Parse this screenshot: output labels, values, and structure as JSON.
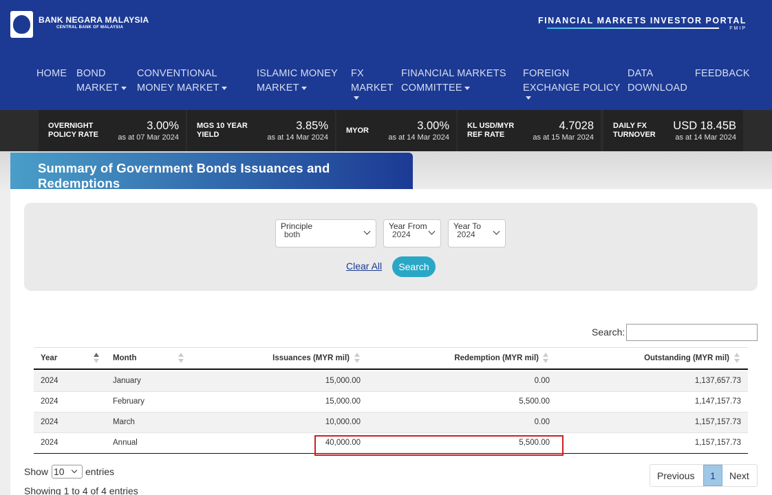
{
  "header": {
    "bank_name": "BANK NEGARA MALAYSIA",
    "bank_sub": "CENTRAL BANK OF MALAYSIA",
    "portal_title": "FINANCIAL MARKETS INVESTOR PORTAL",
    "portal_sub": "FMIP",
    "brand_color": "#1c3a94"
  },
  "nav": [
    {
      "line1": "HOME",
      "line2": ""
    },
    {
      "line1": "BOND",
      "line2": "MARKET"
    },
    {
      "line1": "CONVENTIONAL",
      "line2": "MONEY MARKET"
    },
    {
      "line1": "ISLAMIC MONEY",
      "line2": "MARKET"
    },
    {
      "line1": "FX",
      "line2": "MARKET"
    },
    {
      "line1": "FINANCIAL MARKETS",
      "line2": "COMMITTEE"
    },
    {
      "line1": "FOREIGN",
      "line2": "EXCHANGE POLICY"
    },
    {
      "line1": "DATA",
      "line2": "DOWNLOAD"
    },
    {
      "line1": "FEEDBACK",
      "line2": ""
    }
  ],
  "ticker": [
    {
      "label1": "OVERNIGHT",
      "label2": "POLICY RATE",
      "value": "3.00%",
      "date": "as at 07 Mar 2024"
    },
    {
      "label1": "MGS 10 YEAR",
      "label2": "YIELD",
      "value": "3.85%",
      "date": "as at 14 Mar 2024"
    },
    {
      "label1": "MYOR",
      "label2": "",
      "value": "3.00%",
      "date": "as at 14 Mar 2024"
    },
    {
      "label1": "KL USD/MYR",
      "label2": "REF RATE",
      "value": "4.7028",
      "date": "as at 15 Mar 2024"
    },
    {
      "label1": "DAILY FX",
      "label2": "TURNOVER",
      "value": "USD 18.45B",
      "date": "as at 14 Mar 2024"
    }
  ],
  "page_title": "Summary of Government Bonds Issuances and Redemptions",
  "filters": {
    "principle_label": "Principle",
    "principle_value": "both",
    "year_from_label": "Year From",
    "year_from_value": "2024",
    "year_to_label": "Year To",
    "year_to_value": "2024",
    "clear_label": "Clear All",
    "search_label": "Search"
  },
  "table": {
    "search_label": "Search:",
    "columns": [
      "Year",
      "Month",
      "Issuances (MYR mil)",
      "Redemption (MYR mil)",
      "Outstanding (MYR mil)"
    ],
    "rows": [
      [
        "2024",
        "January",
        "15,000.00",
        "0.00",
        "1,137,657.73"
      ],
      [
        "2024",
        "February",
        "15,000.00",
        "5,500.00",
        "1,147,157.73"
      ],
      [
        "2024",
        "March",
        "10,000.00",
        "0.00",
        "1,157,157.73"
      ],
      [
        "2024",
        "Annual",
        "40,000.00",
        "5,500.00",
        "1,157,157.73"
      ]
    ]
  },
  "footer": {
    "show_label": "Show",
    "entries_value": "10",
    "entries_label": "entries",
    "showing_text": "Showing 1 to 4 of 4 entries",
    "prev_label": "Previous",
    "page_number": "1",
    "next_label": "Next"
  },
  "highlight_color": "#cc1f1f"
}
